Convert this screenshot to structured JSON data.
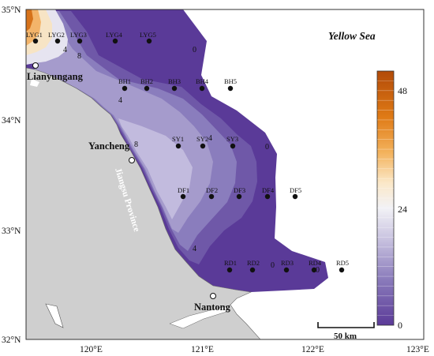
{
  "map": {
    "sea_label": "Yellow Sea",
    "province_label": "Jiangsu Province",
    "scale_bar_label": "50 km",
    "lat_labels": [
      "35°N",
      "34°N",
      "33°N",
      "32°N"
    ],
    "lon_labels": [
      "120°E",
      "121°E",
      "122°E",
      "123°E"
    ],
    "cities": [
      "Lianyungang",
      "Yancheng",
      "Nantong"
    ],
    "stations": [
      "LYG1",
      "LYG2",
      "LYG3",
      "LYG4",
      "LYG5",
      "BH1",
      "BH2",
      "BH3",
      "BH4",
      "BH5",
      "SY1",
      "SY2",
      "SY3",
      "DF1",
      "DF2",
      "DF3",
      "DF4",
      "DF5",
      "RD1",
      "RD2",
      "RD3",
      "RD4",
      "RD5"
    ],
    "contour_labels": [
      "4",
      "8",
      "0",
      "4",
      "8",
      "4",
      "0",
      "4",
      "0",
      "0"
    ],
    "colorbar": {
      "ticks": [
        "48",
        "24",
        "0"
      ],
      "min": 0,
      "max": 52
    },
    "colors": {
      "land": "#cfcfcf",
      "deep_purple": "#5a3a98",
      "sea": "#ffffff"
    }
  }
}
